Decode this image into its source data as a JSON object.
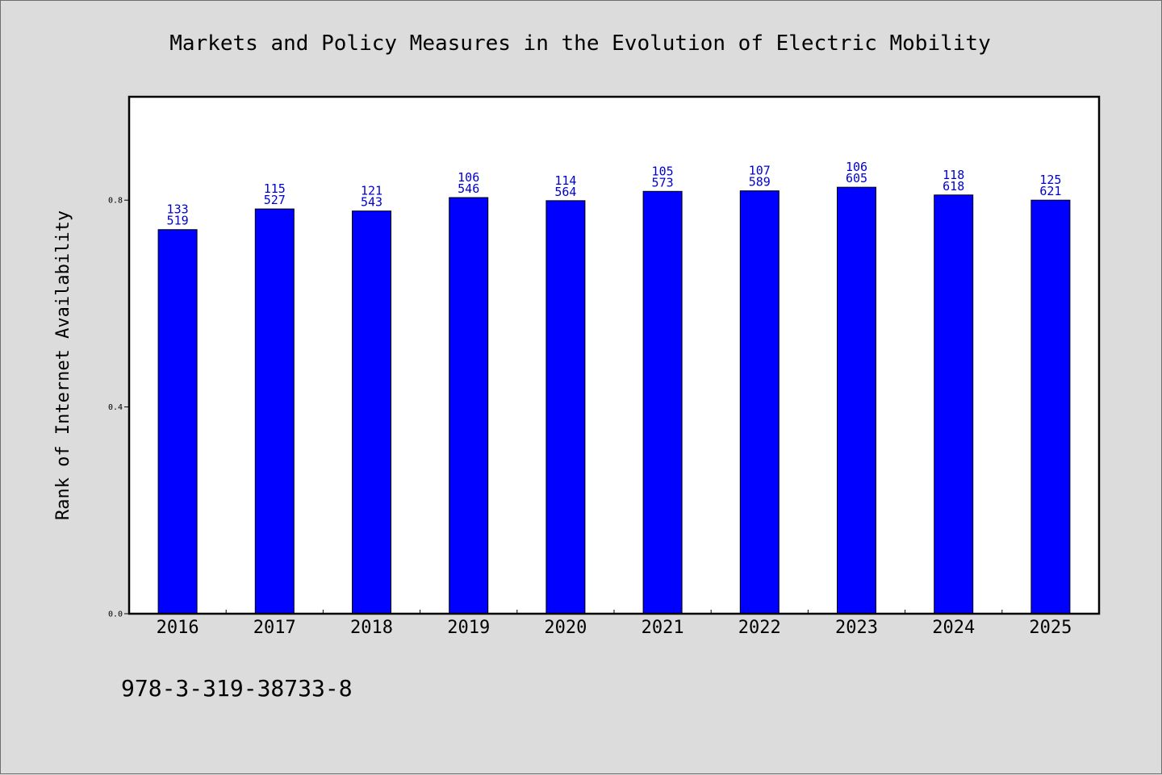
{
  "chart_data": {
    "type": "bar",
    "title": "Markets and Policy Measures in the Evolution of Electric Mobility",
    "ylabel": "Rank of Internet Availability",
    "xlabel": "",
    "categories": [
      "2016",
      "2017",
      "2018",
      "2019",
      "2020",
      "2021",
      "2022",
      "2023",
      "2024",
      "2025"
    ],
    "values": [
      0.743,
      0.783,
      0.779,
      0.805,
      0.799,
      0.817,
      0.818,
      0.825,
      0.81,
      0.8
    ],
    "label_top": [
      "133",
      "115",
      "121",
      "106",
      "114",
      "105",
      "107",
      "106",
      "118",
      "125"
    ],
    "label_bottom": [
      "519",
      "527",
      "543",
      "546",
      "564",
      "573",
      "589",
      "605",
      "618",
      "621"
    ],
    "ylim": [
      0,
      1.0
    ],
    "yticks": [
      "0.0",
      "0.4",
      "0.8"
    ],
    "ytick_values": [
      0,
      0.4,
      0.8
    ],
    "grid": false,
    "bar_color": "#0000ff",
    "label_color": "#0000cc",
    "background": "#dcdcdc",
    "plot_background": "#ffffff"
  },
  "footer": {
    "isbn": "978-3-319-38733-8"
  }
}
